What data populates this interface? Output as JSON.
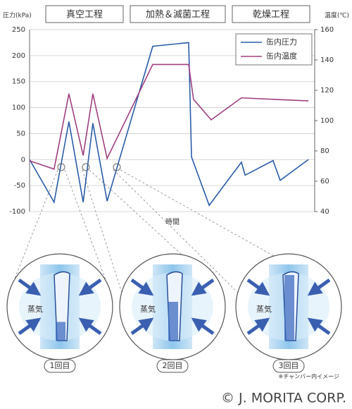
{
  "chart_data": {
    "type": "line",
    "phases": [
      "真空工程",
      "加熱＆滅菌工程",
      "乾燥工程"
    ],
    "y_label": "圧力(kPa)",
    "y2_label": "温度(℃)",
    "x_label": "時間",
    "xlim": [
      0,
      100
    ],
    "ylim": [
      -100,
      250
    ],
    "yticks": [
      -100,
      -50,
      0,
      50,
      100,
      150,
      200,
      250
    ],
    "y2lim": [
      40,
      160
    ],
    "y2ticks": [
      40,
      60,
      80,
      100,
      120,
      140,
      160
    ],
    "grid": true,
    "legend": "upper right",
    "series": [
      {
        "name": "缶内圧力",
        "color": "#2a5ca8",
        "x": [
          0,
          8.6,
          13.8,
          18.8,
          22.2,
          27.2,
          43.2,
          55.8,
          56.8,
          63,
          74.3,
          75.6,
          85.4,
          87.9,
          97.8
        ],
        "values": [
          0,
          -82,
          73,
          -82,
          70,
          -80,
          218,
          225,
          5,
          -88,
          -5,
          -30,
          -2,
          -40,
          0
        ]
      },
      {
        "name": "缶内温度",
        "color": "#a0407f",
        "axis": "y2",
        "x": [
          0,
          8.6,
          13.8,
          18.8,
          22.2,
          27.2,
          43.2,
          55.8,
          57.5,
          63.7,
          74.3,
          85.9,
          97.8
        ],
        "values": [
          73.5,
          68,
          117.7,
          77,
          117.7,
          75,
          137,
          137,
          114,
          100.5,
          115,
          114,
          113
        ]
      }
    ],
    "illustrations": [
      {
        "steam": "蒸気",
        "label": "1回目"
      },
      {
        "steam": "蒸気",
        "label": "2回目"
      },
      {
        "steam": "蒸気",
        "label": "3回目"
      }
    ],
    "note": "※チャンバー内イメージ",
    "copyright": "© J. MORITA CORP."
  }
}
